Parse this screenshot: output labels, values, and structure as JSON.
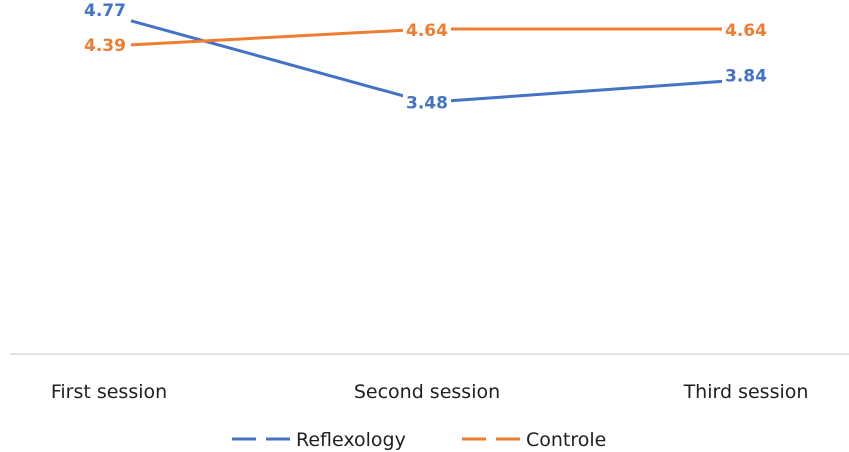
{
  "chart_data": {
    "type": "line",
    "categories": [
      "First session",
      "Second session",
      "Third session"
    ],
    "series": [
      {
        "name": "Reflexology",
        "values": [
          4.77,
          3.48,
          3.84
        ],
        "color": "#4472C4"
      },
      {
        "name": "Controle",
        "values": [
          4.39,
          4.64,
          4.64
        ],
        "color": "#ED7D31"
      }
    ],
    "value_labels": [
      [
        "4.77",
        "3.48",
        "3.84"
      ],
      [
        "4.39",
        "4.64",
        "4.64"
      ]
    ],
    "legend_position": "bottom",
    "grid": false
  }
}
